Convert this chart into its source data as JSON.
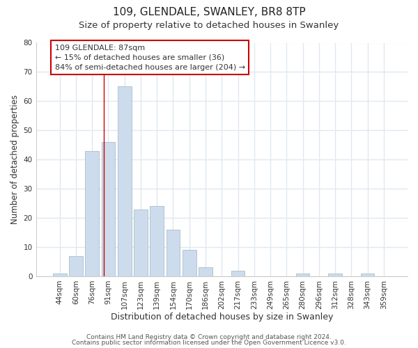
{
  "title": "109, GLENDALE, SWANLEY, BR8 8TP",
  "subtitle": "Size of property relative to detached houses in Swanley",
  "xlabel": "Distribution of detached houses by size in Swanley",
  "ylabel": "Number of detached properties",
  "bar_color": "#ccdcec",
  "bar_edge_color": "#aabccc",
  "categories": [
    "44sqm",
    "60sqm",
    "76sqm",
    "91sqm",
    "107sqm",
    "123sqm",
    "139sqm",
    "154sqm",
    "170sqm",
    "186sqm",
    "202sqm",
    "217sqm",
    "233sqm",
    "249sqm",
    "265sqm",
    "280sqm",
    "296sqm",
    "312sqm",
    "328sqm",
    "343sqm",
    "359sqm"
  ],
  "values": [
    1,
    7,
    43,
    46,
    65,
    23,
    24,
    16,
    9,
    3,
    0,
    2,
    0,
    0,
    0,
    1,
    0,
    1,
    0,
    1,
    0
  ],
  "ylim": [
    0,
    80
  ],
  "yticks": [
    0,
    10,
    20,
    30,
    40,
    50,
    60,
    70,
    80
  ],
  "vline_color": "#cc0000",
  "annotation_title": "109 GLENDALE: 87sqm",
  "annotation_line1": "← 15% of detached houses are smaller (36)",
  "annotation_line2": "84% of semi-detached houses are larger (204) →",
  "footer1": "Contains HM Land Registry data © Crown copyright and database right 2024.",
  "footer2": "Contains public sector information licensed under the Open Government Licence v3.0.",
  "background_color": "#ffffff",
  "plot_background_color": "#ffffff",
  "grid_color": "#e0e8f0",
  "title_fontsize": 11,
  "subtitle_fontsize": 9.5,
  "tick_fontsize": 7.5,
  "ylabel_fontsize": 8.5,
  "xlabel_fontsize": 9,
  "footer_fontsize": 6.5,
  "annotation_fontsize": 8
}
